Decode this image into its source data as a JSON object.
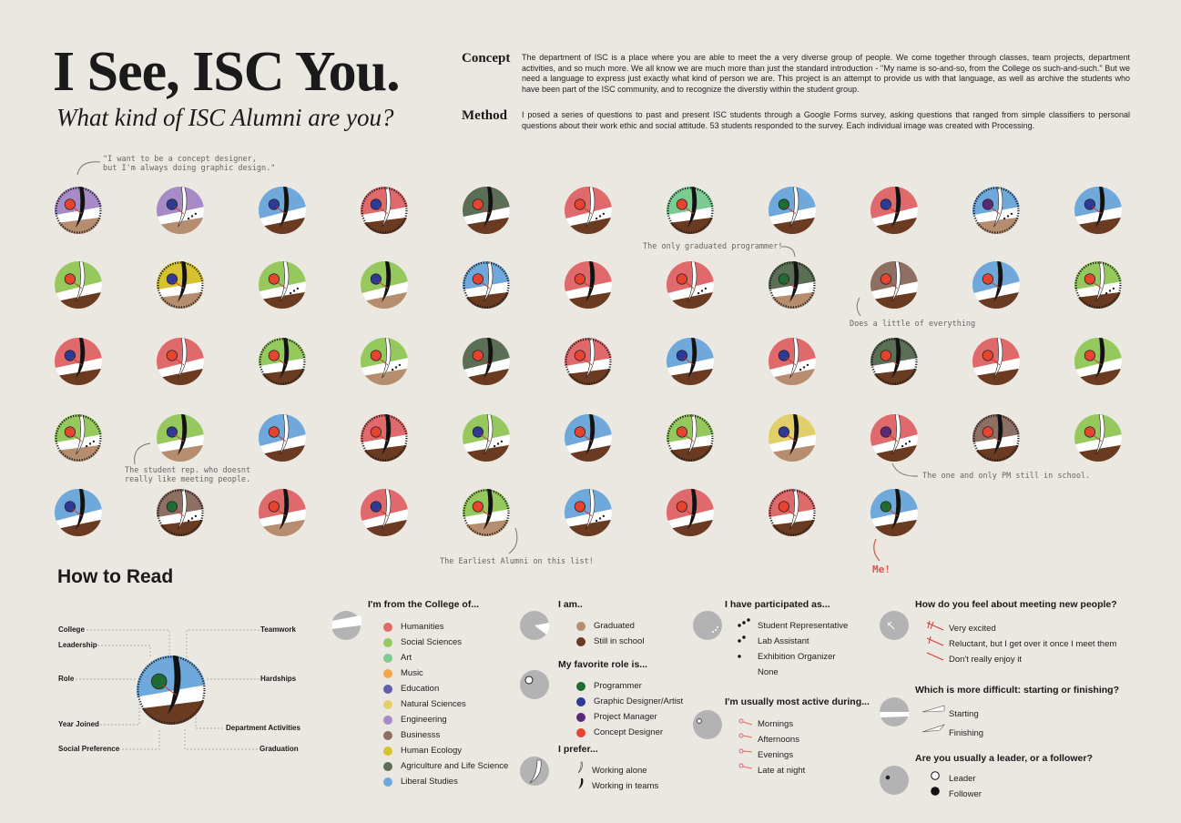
{
  "header": {
    "title": "I See, ISC You.",
    "subtitle": "What kind of ISC Alumni are you?"
  },
  "concept": {
    "label": "Concept",
    "text": "The department of ISC is a place where you are able to meet the a very diverse group of people. We come together through classes, team projects, department activities, and so much more. We all know we are much more than just the standard introduction - \"My name is so-and-so, from the College os such-and-such.\" But we need a language to express just exactly what kind of person we are. This project is an attempt to provide us with that language, as well as archive the students who have been part of the ISC community, and to recognize the diverstiy within the student group."
  },
  "method": {
    "label": "Method",
    "text": "I posed a series of questions to past and present ISC students through a Google Forms survey, asking questions that ranged from simple classifiers to personal questions about their work ethic and social attitude. 53 students responded to the survey. Each individual image was created with Processing."
  },
  "notes": {
    "concept_designer": "\"I want to be a concept designer,",
    "concept_designer_2": "but I'm always doing graphic design.\"",
    "programmer": "The only graduated programmer!",
    "everything": "Does a little of everything",
    "student_rep": "The student rep. who doesnt",
    "student_rep_2": "really like meeting people.",
    "pm": "The one and only PM still in school.",
    "earliest": "The Earliest Alumni on this list!",
    "me": "Me!"
  },
  "colors": {
    "Humanities": "#e0696b",
    "Social Sciences": "#95c95e",
    "Art": "#7ccb93",
    "Music": "#f2a54a",
    "Education": "#5f5faa",
    "Natural Sciences": "#e2cf6a",
    "Engineering": "#a68bc6",
    "Business": "#8e6f63",
    "Human Ecology": "#d6c12e",
    "Agriculture and Life Science": "#5b6e56",
    "Liberal Studies": "#6fa8da",
    "Programmer": "#1f6b34",
    "Graphic Designer/Artist": "#2e3a96",
    "Project Manager": "#5b2877",
    "Concept Designer": "#e8432e",
    "Graduated": "#b78d70",
    "Still in school": "#6a3a21",
    "background": "#ebe7e1"
  },
  "students": [
    [
      "Engineering",
      "Concept Designer",
      "Graduated"
    ],
    [
      "Engineering",
      "Graphic Designer/Artist",
      "Graduated"
    ],
    [
      "Liberal Studies",
      "Graphic Designer/Artist",
      "Still in school"
    ],
    [
      "Humanities",
      "Graphic Designer/Artist",
      "Still in school"
    ],
    [
      "Agriculture and Life Science",
      "Concept Designer",
      "Still in school"
    ],
    [
      "Humanities",
      "Concept Designer",
      "Still in school"
    ],
    [
      "Art",
      "Concept Designer",
      "Still in school"
    ],
    [
      "Liberal Studies",
      "Programmer",
      "Still in school"
    ],
    [
      "Humanities",
      "Graphic Designer/Artist",
      "Still in school"
    ],
    [
      "Liberal Studies",
      "Project Manager",
      "Graduated"
    ],
    [
      "Liberal Studies",
      "Graphic Designer/Artist",
      "Still in school"
    ],
    [
      "Social Sciences",
      "Concept Designer",
      "Still in school"
    ],
    [
      "Human Ecology",
      "Graphic Designer/Artist",
      "Graduated"
    ],
    [
      "Social Sciences",
      "Concept Designer",
      "Still in school"
    ],
    [
      "Social Sciences",
      "Graphic Designer/Artist",
      "Graduated"
    ],
    [
      "Liberal Studies",
      "Concept Designer",
      "Still in school"
    ],
    [
      "Humanities",
      "Concept Designer",
      "Still in school"
    ],
    [
      "Humanities",
      "Concept Designer",
      "Still in school"
    ],
    [
      "Agriculture and Life Science",
      "Programmer",
      "Graduated"
    ],
    [
      "Business",
      "Concept Designer",
      "Still in school"
    ],
    [
      "Liberal Studies",
      "Concept Designer",
      "Still in school"
    ],
    [
      "Social Sciences",
      "Concept Designer",
      "Still in school"
    ],
    [
      "Humanities",
      "Graphic Designer/Artist",
      "Still in school"
    ],
    [
      "Humanities",
      "Concept Designer",
      "Still in school"
    ],
    [
      "Social Sciences",
      "Concept Designer",
      "Still in school"
    ],
    [
      "Social Sciences",
      "Concept Designer",
      "Graduated"
    ],
    [
      "Agriculture and Life Science",
      "Concept Designer",
      "Still in school"
    ],
    [
      "Humanities",
      "Concept Designer",
      "Still in school"
    ],
    [
      "Liberal Studies",
      "Graphic Designer/Artist",
      "Still in school"
    ],
    [
      "Humanities",
      "Graphic Designer/Artist",
      "Graduated"
    ],
    [
      "Agriculture and Life Science",
      "Concept Designer",
      "Still in school"
    ],
    [
      "Humanities",
      "Concept Designer",
      "Still in school"
    ],
    [
      "Social Sciences",
      "Concept Designer",
      "Still in school"
    ],
    [
      "Social Sciences",
      "Concept Designer",
      "Graduated"
    ],
    [
      "Social Sciences",
      "Graphic Designer/Artist",
      "Graduated"
    ],
    [
      "Liberal Studies",
      "Concept Designer",
      "Still in school"
    ],
    [
      "Humanities",
      "Concept Designer",
      "Still in school"
    ],
    [
      "Social Sciences",
      "Graphic Designer/Artist",
      "Still in school"
    ],
    [
      "Liberal Studies",
      "Concept Designer",
      "Still in school"
    ],
    [
      "Social Sciences",
      "Concept Designer",
      "Still in school"
    ],
    [
      "Natural Sciences",
      "Graphic Designer/Artist",
      "Graduated"
    ],
    [
      "Humanities",
      "Project Manager",
      "Still in school"
    ],
    [
      "Business",
      "Concept Designer",
      "Still in school"
    ],
    [
      "Social Sciences",
      "Concept Designer",
      "Still in school"
    ],
    [
      "Liberal Studies",
      "Graphic Designer/Artist",
      "Still in school"
    ],
    [
      "Business",
      "Programmer",
      "Still in school"
    ],
    [
      "Humanities",
      "Concept Designer",
      "Graduated"
    ],
    [
      "Humanities",
      "Graphic Designer/Artist",
      "Still in school"
    ],
    [
      "Social Sciences",
      "Concept Designer",
      "Graduated"
    ],
    [
      "Liberal Studies",
      "Concept Designer",
      "Still in school"
    ],
    [
      "Humanities",
      "Concept Designer",
      "Still in school"
    ],
    [
      "Humanities",
      "Concept Designer",
      "Still in school"
    ],
    [
      "Liberal Studies",
      "Programmer",
      "Still in school"
    ]
  ],
  "howto": {
    "title": "How to Read",
    "labels": {
      "college": "College",
      "leadership": "Leadership",
      "role": "Role",
      "year": "Year Joined",
      "social": "Social Preference",
      "teamwork": "Teamwork",
      "hardships": "Hardships",
      "activities": "Department Activities",
      "graduation": "Graduation"
    }
  },
  "legend": {
    "college": {
      "heading": "I'm from the College of...",
      "items": [
        "Humanities",
        "Social Sciences",
        "Art",
        "Music",
        "Education",
        "Natural Sciences",
        "Engineering",
        "Businesss",
        "Human Ecology",
        "Agriculture and Life Science",
        "Liberal Studies"
      ],
      "colors": [
        "#e0696b",
        "#95c95e",
        "#7ccb93",
        "#f2a54a",
        "#5f5faa",
        "#e2cf6a",
        "#a68bc6",
        "#8e6f63",
        "#d6c12e",
        "#5b6e56",
        "#6fa8da"
      ]
    },
    "status": {
      "heading": "I am..",
      "items": [
        "Graduated",
        "Still in school"
      ],
      "colors": [
        "#b78d70",
        "#6a3a21"
      ]
    },
    "role": {
      "heading": "My favorite role is...",
      "items": [
        "Programmer",
        "Graphic Designer/Artist",
        "Project Manager",
        "Concept Designer"
      ],
      "colors": [
        "#1f6b34",
        "#2e3a96",
        "#5b2877",
        "#e8432e"
      ]
    },
    "prefer": {
      "heading": "I prefer...",
      "items": [
        "Working alone",
        "Working in teams"
      ]
    },
    "participated": {
      "heading": "I have participated as...",
      "items": [
        "Student Representative",
        "Lab Assistant",
        "Exhibition Organizer",
        "None"
      ]
    },
    "active": {
      "heading": "I'm usually most active during...",
      "items": [
        "Mornings",
        "Afternoons",
        "Evenings",
        "Late at night"
      ]
    },
    "meeting": {
      "heading": "How do you feel about meeting new people?",
      "items": [
        "Very excited",
        "Reluctant, but I get over it once I meet them",
        "Don't really enjoy it"
      ]
    },
    "difficult": {
      "heading": "Which is more difficult: starting or finishing?",
      "items": [
        "Starting",
        "Finishing"
      ]
    },
    "leader": {
      "heading": "Are you usually a leader, or a follower?",
      "items": [
        "Leader",
        "Follower"
      ]
    }
  }
}
